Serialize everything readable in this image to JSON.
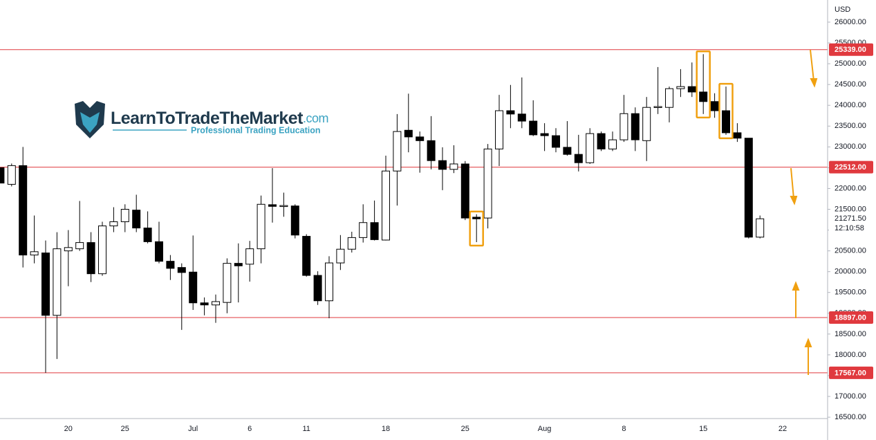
{
  "chart_data": {
    "type": "candlestick",
    "currency": "USD",
    "watermark": {
      "name": "LearnToTradeTheMarket",
      "domain": ".com",
      "tagline": "Professional Trading Education"
    },
    "categories": [
      null,
      null,
      null,
      null,
      null,
      null,
      "20",
      null,
      null,
      null,
      null,
      "25",
      null,
      null,
      null,
      null,
      null,
      "Jul",
      null,
      null,
      null,
      null,
      "6",
      null,
      null,
      null,
      null,
      "11",
      null,
      null,
      null,
      null,
      null,
      null,
      "18",
      null,
      null,
      null,
      null,
      null,
      null,
      "25",
      null,
      null,
      null,
      null,
      null,
      null,
      "Aug",
      null,
      null,
      null,
      null,
      null,
      null,
      "8",
      null,
      null,
      null,
      null,
      null,
      null,
      "15",
      null,
      null,
      null,
      null,
      null,
      null,
      "22",
      null,
      null
    ],
    "open": [
      22500,
      22100,
      22550,
      20400,
      20450,
      18950,
      20500,
      20550,
      20700,
      19950,
      21100,
      21200,
      21480,
      21050,
      20720,
      20250,
      20100,
      19990,
      19250,
      19200,
      19260,
      20200,
      20180,
      20550,
      21610,
      21580,
      21580,
      20850,
      19910,
      19300,
      20210,
      20540,
      20820,
      21180,
      20760,
      22420,
      23400,
      23240,
      23150,
      22670,
      22460,
      22590,
      21310,
      21290,
      22950,
      23870,
      23790,
      23620,
      23320,
      23270,
      22990,
      22820,
      22620,
      23320,
      22950,
      23170,
      23800,
      23150,
      23950,
      23950,
      24400,
      24450,
      24320,
      24090,
      23870,
      23340,
      23210,
      20830,
      null,
      null,
      null,
      null
    ],
    "high": [
      22500,
      22600,
      23000,
      21350,
      20750,
      20950,
      21000,
      21700,
      20950,
      21200,
      21550,
      21620,
      21850,
      21450,
      21200,
      20400,
      20200,
      20870,
      19380,
      19450,
      20320,
      20680,
      20740,
      21830,
      22490,
      21900,
      21620,
      20900,
      20010,
      20370,
      20880,
      20960,
      21620,
      21710,
      22790,
      23790,
      24280,
      23370,
      23740,
      22990,
      23040,
      22660,
      21380,
      23070,
      24250,
      24490,
      24670,
      24120,
      23570,
      23450,
      23620,
      23290,
      23450,
      23370,
      23370,
      24250,
      23950,
      24200,
      24920,
      24450,
      24870,
      25030,
      25230,
      24290,
      24450,
      23570,
      23210,
      21350,
      null,
      null,
      null,
      null
    ],
    "low": [
      22130,
      22050,
      20100,
      20200,
      17567,
      17900,
      19650,
      20500,
      19750,
      19900,
      20950,
      20950,
      20950,
      20680,
      20200,
      19800,
      18600,
      19080,
      18950,
      18770,
      19000,
      19260,
      19760,
      20200,
      21180,
      21320,
      20800,
      19880,
      19200,
      18880,
      20040,
      20460,
      20700,
      20750,
      20750,
      21590,
      22870,
      22380,
      22460,
      21960,
      22370,
      21240,
      20710,
      21040,
      22540,
      23450,
      23450,
      23260,
      22900,
      22870,
      22790,
      22410,
      22590,
      22900,
      22900,
      23120,
      22900,
      22660,
      23790,
      23590,
      24200,
      24200,
      23790,
      23700,
      23290,
      23120,
      20800,
      20800,
      null,
      null,
      null,
      null
    ],
    "close": [
      22130,
      22550,
      20400,
      20480,
      18950,
      20550,
      20580,
      20700,
      19950,
      21100,
      21200,
      21500,
      21050,
      20720,
      20250,
      20080,
      19980,
      19250,
      19200,
      19280,
      20200,
      20140,
      20550,
      21620,
      21570,
      21590,
      20880,
      19910,
      19300,
      20210,
      20540,
      20820,
      21180,
      20770,
      22420,
      23370,
      23240,
      23150,
      22670,
      22460,
      22590,
      21290,
      21270,
      22950,
      23870,
      23790,
      23620,
      23290,
      23270,
      22990,
      22820,
      22620,
      23320,
      22950,
      23170,
      23800,
      23170,
      23950,
      23970,
      24400,
      24450,
      24320,
      24090,
      23870,
      23340,
      23210,
      20830,
      21271.5,
      null,
      null,
      null,
      null
    ],
    "up_color": "#ffffff",
    "down_color": "#000000",
    "current_price": {
      "value": 21271.5,
      "label": "21271.50"
    },
    "countdown": "12:10:58",
    "levels": [
      {
        "value": 25339,
        "label": "25339.00"
      },
      {
        "value": 22512,
        "label": "22512.00"
      },
      {
        "value": 18897,
        "label": "18897.00"
      },
      {
        "value": 17567,
        "label": "17567.00"
      }
    ],
    "level_color": "#e0393e",
    "ylim": [
      16468,
      26532
    ],
    "yticks": [
      {
        "value": 16500,
        "label": "16500.00"
      },
      {
        "value": 17000,
        "label": "17000.00"
      },
      {
        "value": 17500,
        "label": "17500.00"
      },
      {
        "value": 18000,
        "label": "18000.00"
      },
      {
        "value": 18500,
        "label": "18500.00"
      },
      {
        "value": 19000,
        "label": "19000.00"
      },
      {
        "value": 19500,
        "label": "19500.00"
      },
      {
        "value": 20000,
        "label": "20000.00"
      },
      {
        "value": 20500,
        "label": "20500.00"
      },
      {
        "value": 21000,
        "label": "21000.00"
      },
      {
        "value": 21500,
        "label": "21500.00"
      },
      {
        "value": 22000,
        "label": "22000.00"
      },
      {
        "value": 22500,
        "label": "22500.00"
      },
      {
        "value": 23000,
        "label": "23000.00"
      },
      {
        "value": 23500,
        "label": "23500.00"
      },
      {
        "value": 24000,
        "label": "24000.00"
      },
      {
        "value": 24500,
        "label": "24500.00"
      },
      {
        "value": 25000,
        "label": "25000.00"
      },
      {
        "value": 25500,
        "label": "25500.00"
      },
      {
        "value": 26000,
        "label": "26000.00"
      }
    ],
    "grid": false
  }
}
